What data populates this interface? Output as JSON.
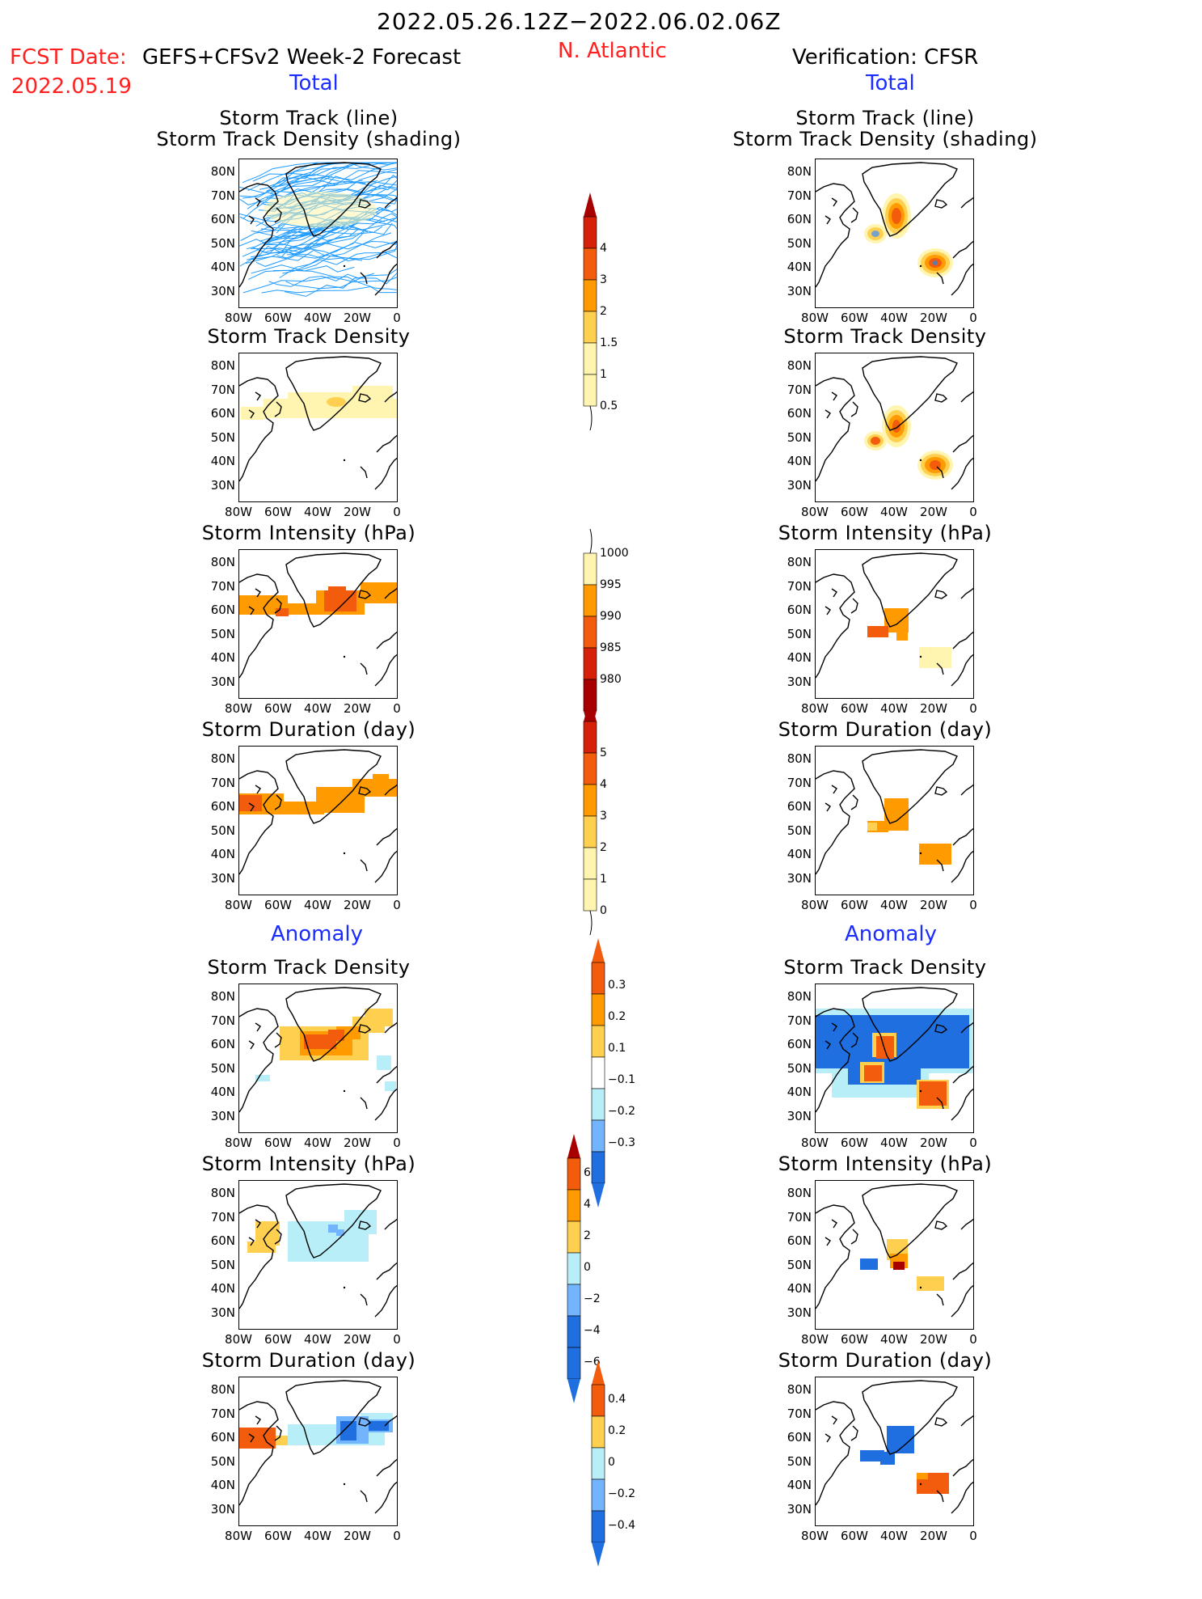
{
  "header": {
    "title": "2022.05.26.12Z−2022.06.02.06Z",
    "fcst_label": "FCST Date:",
    "fcst_model": "GEFS+CFSv2 Week-2 Forecast",
    "fcst_date": "2022.05.19",
    "region": "N. Atlantic",
    "verification": "Verification: CFSR",
    "total_left": "Total",
    "total_right": "Total"
  },
  "sections": {
    "anomaly_left": "Anomaly",
    "anomaly_right": "Anomaly"
  },
  "panel_titles": {
    "track_line": "Storm Track (line)",
    "track_shading": "Storm Track Density (shading)",
    "density": "Storm Track Density",
    "intensity": "Storm Intensity (hPa)",
    "duration": "Storm Duration (day)"
  },
  "axes": {
    "lat_labels": [
      "80N",
      "70N",
      "60N",
      "50N",
      "40N",
      "30N"
    ],
    "lon_labels": [
      "80W",
      "60W",
      "40W",
      "20W",
      "0"
    ]
  },
  "colorbars": {
    "density_total": [
      "4",
      "3",
      "2",
      "1.5",
      "1",
      "0.5"
    ],
    "intensity_total": [
      "1000",
      "995",
      "990",
      "985",
      "980"
    ],
    "duration_total": [
      "5",
      "4",
      "3",
      "2",
      "1",
      "0"
    ],
    "density_anom": [
      "0.3",
      "0.2",
      "0.1",
      "−0.1",
      "−0.2",
      "−0.3"
    ],
    "intensity_anom": [
      "6",
      "4",
      "2",
      "0",
      "−2",
      "−4",
      "−6"
    ],
    "duration_anom": [
      "0.4",
      "0.2",
      "0",
      "−0.2",
      "−0.4"
    ]
  },
  "colors": {
    "red_text": "#ff2020",
    "blue_text": "#1a2cff",
    "track_line": "#1f9bff",
    "pale_yellow": "#fff5b0",
    "yellow": "#ffd050",
    "orange": "#ff9a00",
    "dark_orange": "#f25c0c",
    "red": "#d7200a",
    "dark_red": "#a80000",
    "light_blue": "#b8eef8",
    "mid_blue": "#73b4ff",
    "blue": "#1f6fe0"
  }
}
